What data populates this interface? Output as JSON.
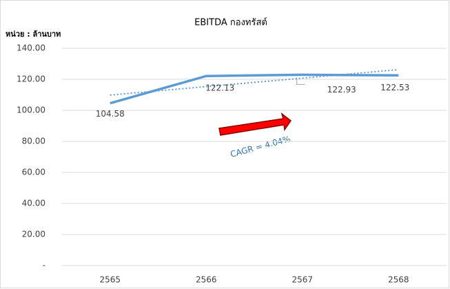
{
  "chart_data": {
    "type": "line",
    "title": "EBITDA กองทรัสต์",
    "y_label": "หน่วย : ล้านบาท",
    "categories": [
      "2565",
      "2566",
      "2567",
      "2568"
    ],
    "series": [
      {
        "name": "EBITDA",
        "color": "#5b9bd5",
        "values": [
          104.58,
          122.13,
          122.93,
          122.53
        ]
      }
    ],
    "trendline": "linear",
    "annotation": "CAGR = 4.04%",
    "ylim": [
      0,
      140
    ],
    "yticks": [
      {
        "value": 0,
        "label": "-"
      },
      {
        "value": 20,
        "label": "20.00"
      },
      {
        "value": 40,
        "label": "40.00"
      },
      {
        "value": 60,
        "label": "60.00"
      },
      {
        "value": 80,
        "label": "80.00"
      },
      {
        "value": 100,
        "label": "100.00"
      },
      {
        "value": 120,
        "label": "120.00"
      },
      {
        "value": 140,
        "label": "140.00"
      }
    ],
    "grid": true
  }
}
